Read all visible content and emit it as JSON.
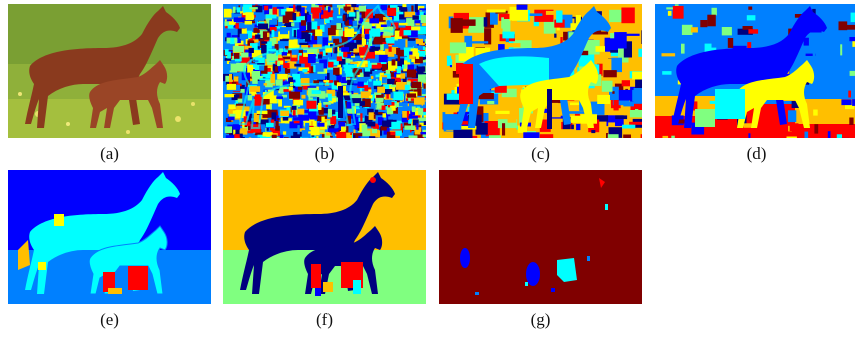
{
  "figure": {
    "panels": [
      {
        "id": "a",
        "label": "(a)",
        "kind": "photo"
      },
      {
        "id": "b",
        "label": "(b)",
        "kind": "segmentation-noisy"
      },
      {
        "id": "c",
        "label": "(c)",
        "kind": "segmentation-coarse"
      },
      {
        "id": "d",
        "label": "(d)",
        "kind": "segmentation-smoothed"
      },
      {
        "id": "e",
        "label": "(e)",
        "kind": "segmentation-regions"
      },
      {
        "id": "f",
        "label": "(f)",
        "kind": "segmentation-clean"
      },
      {
        "id": "g",
        "label": "(g)",
        "kind": "segmentation-error"
      }
    ],
    "colors": {
      "navy": "#00007f",
      "blue": "#0000ff",
      "azure": "#0080ff",
      "cyan": "#00ffff",
      "green": "#80ff80",
      "yellow": "#ffff00",
      "orange": "#ffbf00",
      "red": "#ff0000",
      "maroon": "#800000",
      "grass": "#8fb03a",
      "horse": "#8a3a1e"
    }
  }
}
